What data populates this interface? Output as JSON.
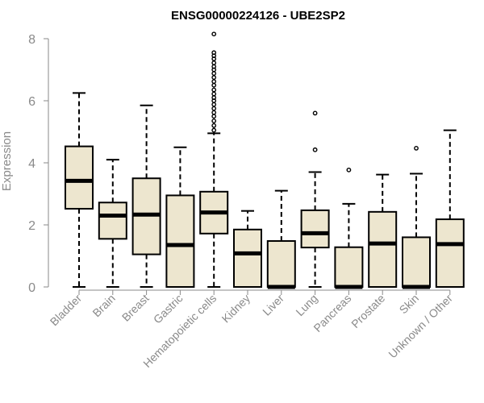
{
  "chart_data": {
    "type": "boxplot",
    "title": "ENSG00000224126 - UBE2SP2",
    "xlabel": "",
    "ylabel": "Expression",
    "ylim": [
      0,
      8
    ],
    "yticks": [
      0,
      2,
      4,
      6,
      8
    ],
    "grid": false,
    "box_color": "#ede6cf",
    "categories": [
      "Bladder",
      "Brain",
      "Breast",
      "Gastric",
      "Hematopoietic cells",
      "Kidney",
      "Liver",
      "Lung",
      "Pancreas",
      "Prostate",
      "Skin",
      "Unknown / Other"
    ],
    "boxes": [
      {
        "min": 0,
        "q1": 2.52,
        "median": 3.42,
        "q3": 4.53,
        "max": 6.25,
        "outliers": []
      },
      {
        "min": 0,
        "q1": 1.55,
        "median": 2.3,
        "q3": 2.72,
        "max": 4.1,
        "outliers": []
      },
      {
        "min": 0,
        "q1": 1.05,
        "median": 2.33,
        "q3": 3.5,
        "max": 5.85,
        "outliers": []
      },
      {
        "min": 0,
        "q1": 0,
        "median": 1.35,
        "q3": 2.95,
        "max": 4.5,
        "outliers": []
      },
      {
        "min": 0,
        "q1": 1.72,
        "median": 2.4,
        "q3": 3.07,
        "max": 4.95,
        "outliers": [
          5.05,
          5.2,
          5.35,
          5.5,
          5.62,
          5.75,
          5.88,
          6.0,
          6.1,
          6.22,
          6.35,
          6.5,
          6.62,
          6.75,
          6.88,
          7.0,
          7.1,
          7.22,
          7.35,
          7.45,
          7.55,
          8.15
        ]
      },
      {
        "min": 0,
        "q1": 0,
        "median": 1.08,
        "q3": 1.85,
        "max": 2.45,
        "outliers": []
      },
      {
        "min": 0,
        "q1": 0,
        "median": 0,
        "q3": 1.48,
        "max": 3.1,
        "outliers": []
      },
      {
        "min": 0,
        "q1": 1.27,
        "median": 1.73,
        "q3": 2.47,
        "max": 3.7,
        "outliers": [
          4.42,
          5.6
        ]
      },
      {
        "min": 0,
        "q1": 0,
        "median": 0,
        "q3": 1.28,
        "max": 2.68,
        "outliers": [
          3.77
        ]
      },
      {
        "min": 0,
        "q1": 0,
        "median": 1.4,
        "q3": 2.42,
        "max": 3.62,
        "outliers": []
      },
      {
        "min": 0,
        "q1": 0,
        "median": 0,
        "q3": 1.6,
        "max": 3.65,
        "outliers": [
          4.47
        ]
      },
      {
        "min": 0,
        "q1": 0,
        "median": 1.38,
        "q3": 2.18,
        "max": 5.05,
        "outliers": []
      }
    ]
  }
}
